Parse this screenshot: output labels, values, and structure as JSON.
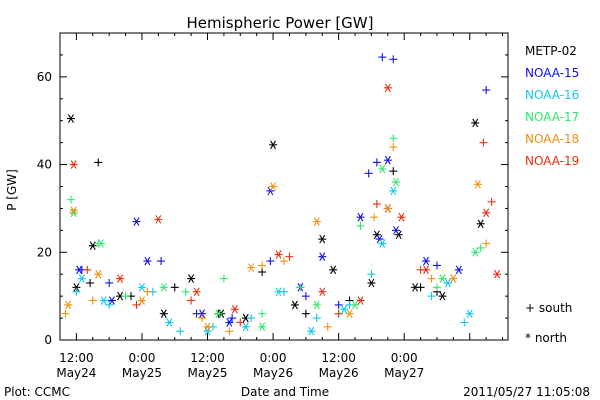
{
  "chart_data": {
    "type": "scatter",
    "title": "Hemispheric Power [GW]",
    "ylabel": "P [GW]",
    "xlabel": "Date and Time",
    "ylim": [
      0,
      70
    ],
    "xlim": [
      "2011-05-24T09:00",
      "2011-05-27T19:00"
    ],
    "yticks": [
      0,
      20,
      40,
      60
    ],
    "xticks": [
      {
        "t": "2011-05-24T12:00",
        "time": "12:00",
        "date": "May24"
      },
      {
        "t": "2011-05-25T00:00",
        "time": "0:00",
        "date": "May25"
      },
      {
        "t": "2011-05-25T12:00",
        "time": "12:00",
        "date": "May25"
      },
      {
        "t": "2011-05-26T00:00",
        "time": "0:00",
        "date": "May26"
      },
      {
        "t": "2011-05-26T12:00",
        "time": "12:00",
        "date": "May26"
      },
      {
        "t": "2011-05-27T00:00",
        "time": "0:00",
        "date": "May27"
      }
    ],
    "legend_position": "right",
    "marker_legend": [
      {
        "symbol": "+",
        "label": "south"
      },
      {
        "symbol": "*",
        "label": "north"
      }
    ],
    "series": [
      {
        "name": "METP-02",
        "color": "#000000",
        "south": [
          [
            "2011-05-24T16:00",
            40.5
          ],
          [
            "2011-05-24T14:30",
            13
          ],
          [
            "2011-05-24T22:00",
            10
          ],
          [
            "2011-05-25T06:00",
            12
          ],
          [
            "2011-05-25T14:00",
            6
          ],
          [
            "2011-05-25T22:00",
            15.5
          ],
          [
            "2011-05-26T06:00",
            6
          ],
          [
            "2011-05-26T14:00",
            9
          ],
          [
            "2011-05-26T22:00",
            38.5
          ],
          [
            "2011-05-27T03:00",
            12
          ],
          [
            "2011-05-27T06:00",
            11
          ]
        ],
        "north": [
          [
            "2011-05-24T11:00",
            50.5
          ],
          [
            "2011-05-24T12:00",
            12
          ],
          [
            "2011-05-24T15:00",
            21.5
          ],
          [
            "2011-05-24T20:00",
            10
          ],
          [
            "2011-05-25T04:00",
            6
          ],
          [
            "2011-05-25T09:00",
            14
          ],
          [
            "2011-05-25T14:30",
            6
          ],
          [
            "2011-05-25T19:00",
            5
          ],
          [
            "2011-05-26T00:00",
            44.5
          ],
          [
            "2011-05-26T04:00",
            8
          ],
          [
            "2011-05-26T09:00",
            23
          ],
          [
            "2011-05-26T11:00",
            16
          ],
          [
            "2011-05-26T18:00",
            13
          ],
          [
            "2011-05-26T19:00",
            24
          ],
          [
            "2011-05-26T21:00",
            30
          ],
          [
            "2011-05-26T23:00",
            24
          ],
          [
            "2011-05-27T02:00",
            12
          ],
          [
            "2011-05-27T07:00",
            10
          ],
          [
            "2011-05-27T13:00",
            49.5
          ],
          [
            "2011-05-27T14:00",
            26.5
          ]
        ]
      },
      {
        "name": "NOAA-15",
        "color": "#1010e8",
        "south": [
          [
            "2011-05-24T13:00",
            16
          ],
          [
            "2011-05-24T18:00",
            13
          ],
          [
            "2011-05-25T03:30",
            18
          ],
          [
            "2011-05-25T10:00",
            6
          ],
          [
            "2011-05-25T16:30",
            5
          ],
          [
            "2011-05-25T23:30",
            18
          ],
          [
            "2011-05-26T06:00",
            10
          ],
          [
            "2011-05-26T12:00",
            8
          ],
          [
            "2011-05-26T17:30",
            38
          ],
          [
            "2011-05-26T19:00",
            40.5
          ],
          [
            "2011-05-26T20:00",
            64.5
          ],
          [
            "2011-05-26T22:00",
            64
          ],
          [
            "2011-05-27T06:00",
            17
          ],
          [
            "2011-05-27T15:00",
            57
          ]
        ],
        "north": [
          [
            "2011-05-24T12:30",
            16
          ],
          [
            "2011-05-24T18:30",
            9
          ],
          [
            "2011-05-24T23:00",
            27
          ],
          [
            "2011-05-25T01:00",
            18
          ],
          [
            "2011-05-25T11:00",
            6
          ],
          [
            "2011-05-25T16:00",
            4
          ],
          [
            "2011-05-25T23:30",
            34
          ],
          [
            "2011-05-26T05:00",
            12
          ],
          [
            "2011-05-26T09:00",
            19
          ],
          [
            "2011-05-26T16:00",
            28
          ],
          [
            "2011-05-26T19:30",
            23
          ],
          [
            "2011-05-26T21:00",
            41
          ],
          [
            "2011-05-26T22:30",
            25
          ],
          [
            "2011-05-27T04:00",
            18
          ],
          [
            "2011-05-27T10:00",
            16
          ]
        ]
      },
      {
        "name": "NOAA-16",
        "color": "#10c8e8",
        "south": [
          [
            "2011-05-24T12:00",
            11
          ],
          [
            "2011-05-24T18:00",
            8
          ],
          [
            "2011-05-25T02:00",
            11
          ],
          [
            "2011-05-25T07:00",
            2
          ],
          [
            "2011-05-25T13:00",
            3
          ],
          [
            "2011-05-25T20:00",
            5
          ],
          [
            "2011-05-26T02:00",
            11
          ],
          [
            "2011-05-26T08:00",
            5
          ],
          [
            "2011-05-26T14:00",
            8
          ],
          [
            "2011-05-26T18:00",
            15
          ],
          [
            "2011-05-27T05:00",
            10
          ],
          [
            "2011-05-27T11:00",
            4
          ]
        ],
        "north": [
          [
            "2011-05-24T13:00",
            14
          ],
          [
            "2011-05-24T17:00",
            9
          ],
          [
            "2011-05-25T00:00",
            12
          ],
          [
            "2011-05-25T05:00",
            4
          ],
          [
            "2011-05-25T12:00",
            2
          ],
          [
            "2011-05-25T19:00",
            3
          ],
          [
            "2011-05-26T01:00",
            11
          ],
          [
            "2011-05-26T07:00",
            2
          ],
          [
            "2011-05-26T13:00",
            7
          ],
          [
            "2011-05-26T20:00",
            22
          ],
          [
            "2011-05-26T22:00",
            34
          ],
          [
            "2011-05-27T08:00",
            13
          ],
          [
            "2011-05-27T12:00",
            6
          ]
        ]
      },
      {
        "name": "NOAA-17",
        "color": "#30e870",
        "south": [
          [
            "2011-05-24T11:00",
            32
          ],
          [
            "2011-05-24T16:00",
            22
          ],
          [
            "2011-05-24T21:00",
            10
          ],
          [
            "2011-05-25T08:00",
            11
          ],
          [
            "2011-05-25T15:00",
            14
          ],
          [
            "2011-05-25T22:00",
            6
          ],
          [
            "2011-05-26T05:00",
            12
          ],
          [
            "2011-05-26T12:00",
            6
          ],
          [
            "2011-05-26T16:00",
            26
          ],
          [
            "2011-05-26T22:00",
            46
          ],
          [
            "2011-05-27T06:00",
            12
          ],
          [
            "2011-05-27T14:00",
            21
          ]
        ],
        "north": [
          [
            "2011-05-24T11:30",
            29
          ],
          [
            "2011-05-24T16:30",
            22
          ],
          [
            "2011-05-25T04:00",
            12
          ],
          [
            "2011-05-25T14:00",
            6
          ],
          [
            "2011-05-25T22:00",
            3
          ],
          [
            "2011-05-26T08:00",
            8
          ],
          [
            "2011-05-26T15:00",
            8
          ],
          [
            "2011-05-26T20:00",
            39
          ],
          [
            "2011-05-26T22:30",
            36
          ],
          [
            "2011-05-27T07:00",
            14
          ],
          [
            "2011-05-27T13:00",
            20
          ]
        ]
      },
      {
        "name": "NOAA-18",
        "color": "#f09010",
        "south": [
          [
            "2011-05-24T10:00",
            6
          ],
          [
            "2011-05-24T15:00",
            9
          ],
          [
            "2011-05-25T01:00",
            11
          ],
          [
            "2011-05-25T11:00",
            5
          ],
          [
            "2011-05-25T16:00",
            2
          ],
          [
            "2011-05-25T22:00",
            17
          ],
          [
            "2011-05-26T02:00",
            18
          ],
          [
            "2011-05-26T10:00",
            3
          ],
          [
            "2011-05-26T18:30",
            28
          ],
          [
            "2011-05-26T22:00",
            44
          ],
          [
            "2011-05-27T05:00",
            14
          ],
          [
            "2011-05-27T15:00",
            22
          ]
        ],
        "north": [
          [
            "2011-05-24T10:30",
            8
          ],
          [
            "2011-05-24T11:30",
            29.5
          ],
          [
            "2011-05-24T16:00",
            15
          ],
          [
            "2011-05-25T00:00",
            9
          ],
          [
            "2011-05-25T12:00",
            3
          ],
          [
            "2011-05-25T20:00",
            16.5
          ],
          [
            "2011-05-26T00:00",
            35
          ],
          [
            "2011-05-26T08:00",
            27
          ],
          [
            "2011-05-26T14:00",
            6
          ],
          [
            "2011-05-26T21:00",
            30
          ],
          [
            "2011-05-27T09:00",
            14
          ],
          [
            "2011-05-27T13:30",
            35.5
          ]
        ]
      },
      {
        "name": "NOAA-19",
        "color": "#e83010",
        "south": [
          [
            "2011-05-24T14:00",
            16
          ],
          [
            "2011-05-24T23:00",
            8
          ],
          [
            "2011-05-25T09:00",
            9
          ],
          [
            "2011-05-25T18:00",
            4
          ],
          [
            "2011-05-26T03:00",
            19
          ],
          [
            "2011-05-26T12:00",
            6
          ],
          [
            "2011-05-26T19:00",
            31
          ],
          [
            "2011-05-27T03:00",
            16
          ],
          [
            "2011-05-27T14:30",
            45
          ],
          [
            "2011-05-27T16:00",
            31.5
          ]
        ],
        "north": [
          [
            "2011-05-24T11:30",
            40
          ],
          [
            "2011-05-24T20:00",
            14
          ],
          [
            "2011-05-25T03:00",
            27.5
          ],
          [
            "2011-05-25T10:00",
            11
          ],
          [
            "2011-05-25T17:00",
            7
          ],
          [
            "2011-05-26T01:00",
            19.5
          ],
          [
            "2011-05-26T09:00",
            11
          ],
          [
            "2011-05-26T16:00",
            9
          ],
          [
            "2011-05-26T21:00",
            57.5
          ],
          [
            "2011-05-26T23:30",
            28
          ],
          [
            "2011-05-27T04:00",
            16
          ],
          [
            "2011-05-27T15:00",
            29
          ],
          [
            "2011-05-27T17:00",
            15
          ]
        ]
      }
    ]
  },
  "footer": {
    "plot_label": "Plot: CCMC",
    "timestamp": "2011/05/27 11:05:08"
  }
}
